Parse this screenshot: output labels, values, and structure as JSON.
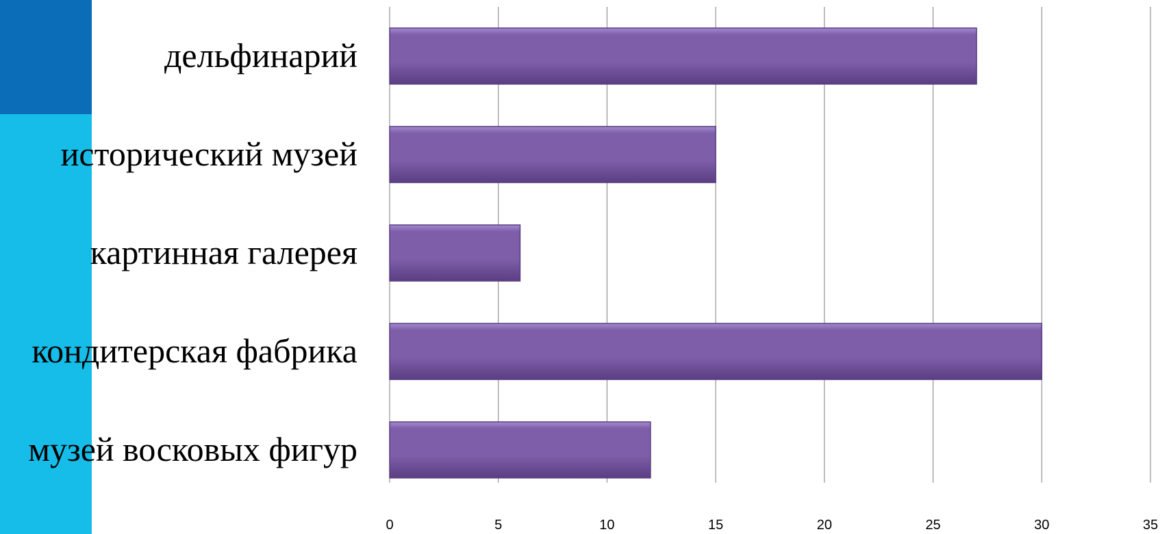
{
  "theme": {
    "accent_dark": "#0B6DB7",
    "accent_light": "#16BDE8",
    "bar_fill": "#7E5EA9",
    "bar_highlight": "#A58BD0",
    "bar_shadow": "#5A3E82",
    "grid_color": "#7F7F7F"
  },
  "chart_data": {
    "type": "bar",
    "orientation": "horizontal",
    "categories": [
      "дельфинарий",
      "исторический музей",
      "картинная галерея",
      "кондитерская фабрика",
      "музей восковых фигур"
    ],
    "values": [
      27,
      15,
      6,
      30,
      12
    ],
    "xlim": [
      0,
      35
    ],
    "xticks": [
      0,
      5,
      10,
      15,
      20,
      25,
      30,
      35
    ],
    "grid": "vertical",
    "legend": "none"
  }
}
